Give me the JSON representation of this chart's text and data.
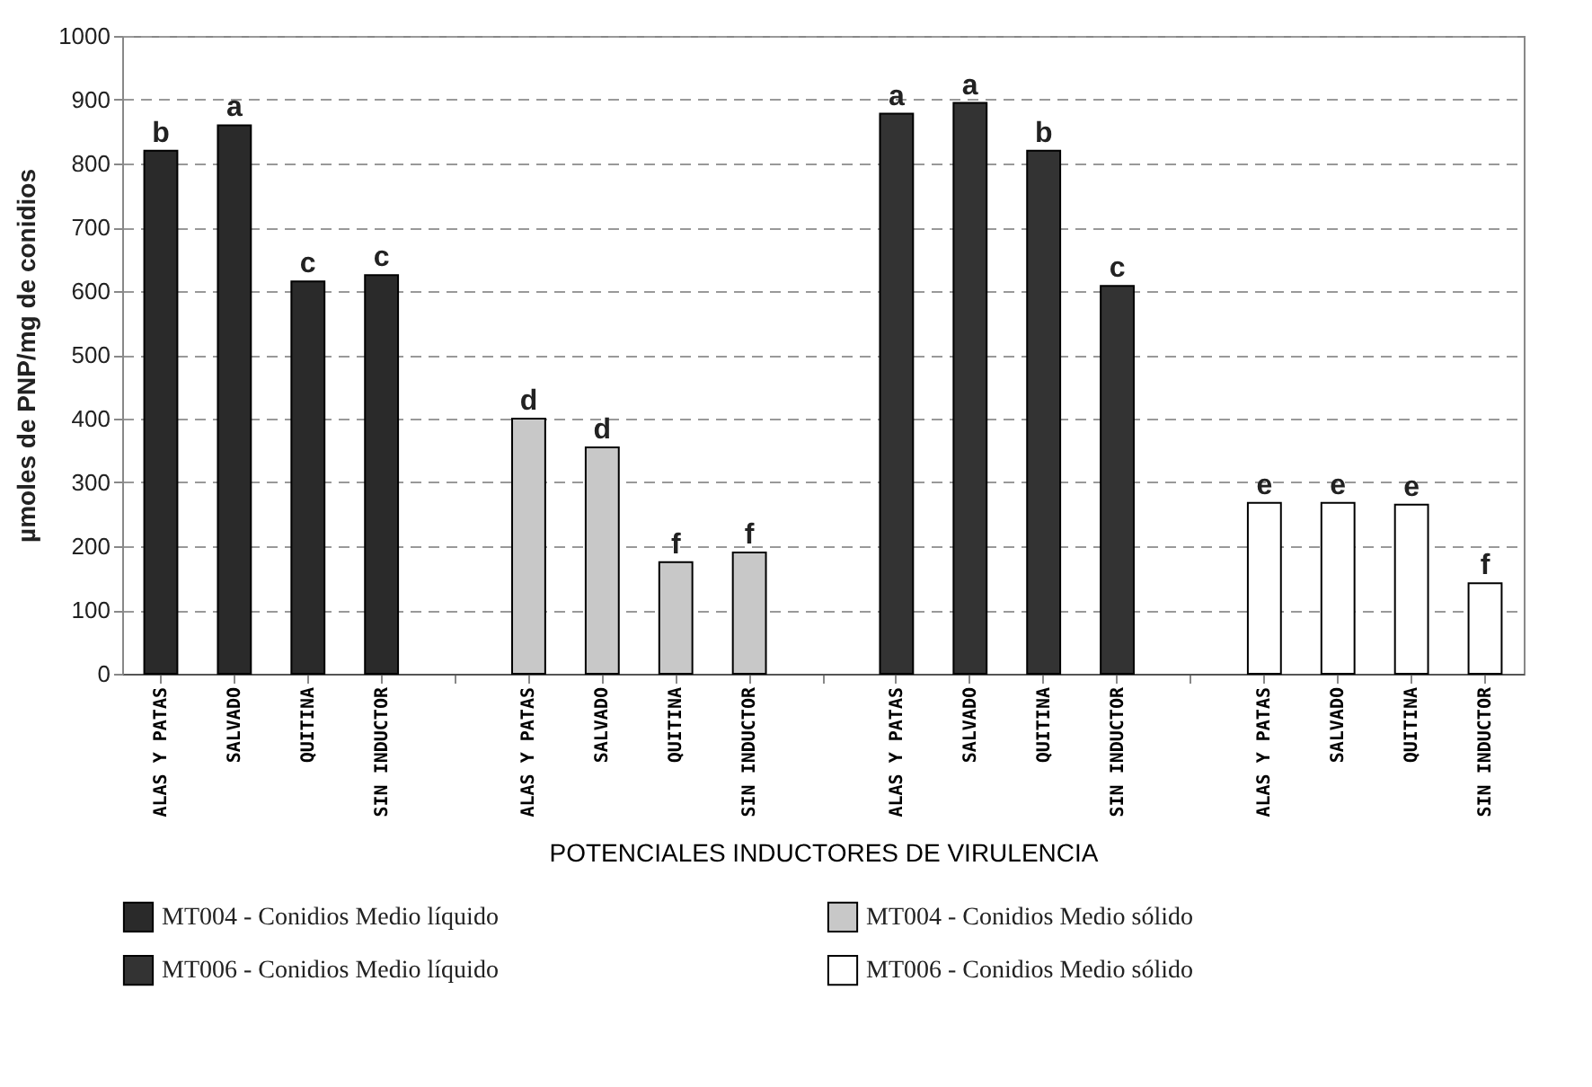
{
  "chart_data": {
    "type": "bar",
    "xlabel": "POTENCIALES INDUCTORES DE VIRULENCIA",
    "ylabel": "µmoles de PNP/mg de conidios",
    "categories": [
      "ALAS Y PATAS",
      "SALVADO",
      "QUITINA",
      "SIN INDUCTOR",
      null,
      "ALAS Y PATAS",
      "SALVADO",
      "QUITINA",
      "SIN INDUCTOR",
      null,
      "ALAS Y PATAS",
      "SALVADO",
      "QUITINA",
      "SIN INDUCTOR",
      null,
      "ALAS Y PATAS",
      "SALVADO",
      "QUITINA",
      "SIN INDUCTOR"
    ],
    "series": [
      {
        "name": "MT004 - Conidios Medio líquido",
        "color": "#2a2a2a",
        "values": [
          820,
          860,
          615,
          625,
          null,
          null,
          null,
          null,
          null,
          null,
          null,
          null,
          null,
          null,
          null,
          null,
          null,
          null,
          null
        ],
        "value_labels": [
          "b",
          "a",
          "c",
          "c",
          null,
          null,
          null,
          null,
          null,
          null,
          null,
          null,
          null,
          null,
          null,
          null,
          null,
          null,
          null
        ]
      },
      {
        "name": "MT004 - Conidios Medio sólido",
        "color": "#c8c8c8",
        "values": [
          null,
          null,
          null,
          null,
          null,
          400,
          355,
          175,
          190,
          null,
          null,
          null,
          null,
          null,
          null,
          null,
          null,
          null,
          null
        ],
        "value_labels": [
          null,
          null,
          null,
          null,
          null,
          "d",
          "d",
          "f",
          "f",
          null,
          null,
          null,
          null,
          null,
          null,
          null,
          null,
          null,
          null
        ]
      },
      {
        "name": "MT006 - Conidios Medio líquido",
        "color": "#333333",
        "values": [
          null,
          null,
          null,
          null,
          null,
          null,
          null,
          null,
          null,
          null,
          878,
          895,
          820,
          608,
          null,
          null,
          null,
          null,
          null
        ],
        "value_labels": [
          null,
          null,
          null,
          null,
          null,
          null,
          null,
          null,
          null,
          null,
          "a",
          "a",
          "b",
          "c",
          null,
          null,
          null,
          null,
          null
        ]
      },
      {
        "name": "MT006 - Conidios Medio sólido",
        "color": "#ffffff",
        "values": [
          null,
          null,
          null,
          null,
          null,
          null,
          null,
          null,
          null,
          null,
          null,
          null,
          null,
          null,
          null,
          268,
          268,
          265,
          142
        ],
        "value_labels": [
          null,
          null,
          null,
          null,
          null,
          null,
          null,
          null,
          null,
          null,
          null,
          null,
          null,
          null,
          null,
          "e",
          "e",
          "e",
          "f"
        ]
      }
    ],
    "ylim": [
      0,
      1000
    ],
    "yticks": [
      0,
      100,
      200,
      300,
      400,
      500,
      600,
      700,
      800,
      900,
      1000
    ],
    "grid": "y",
    "legend": "bottom"
  }
}
